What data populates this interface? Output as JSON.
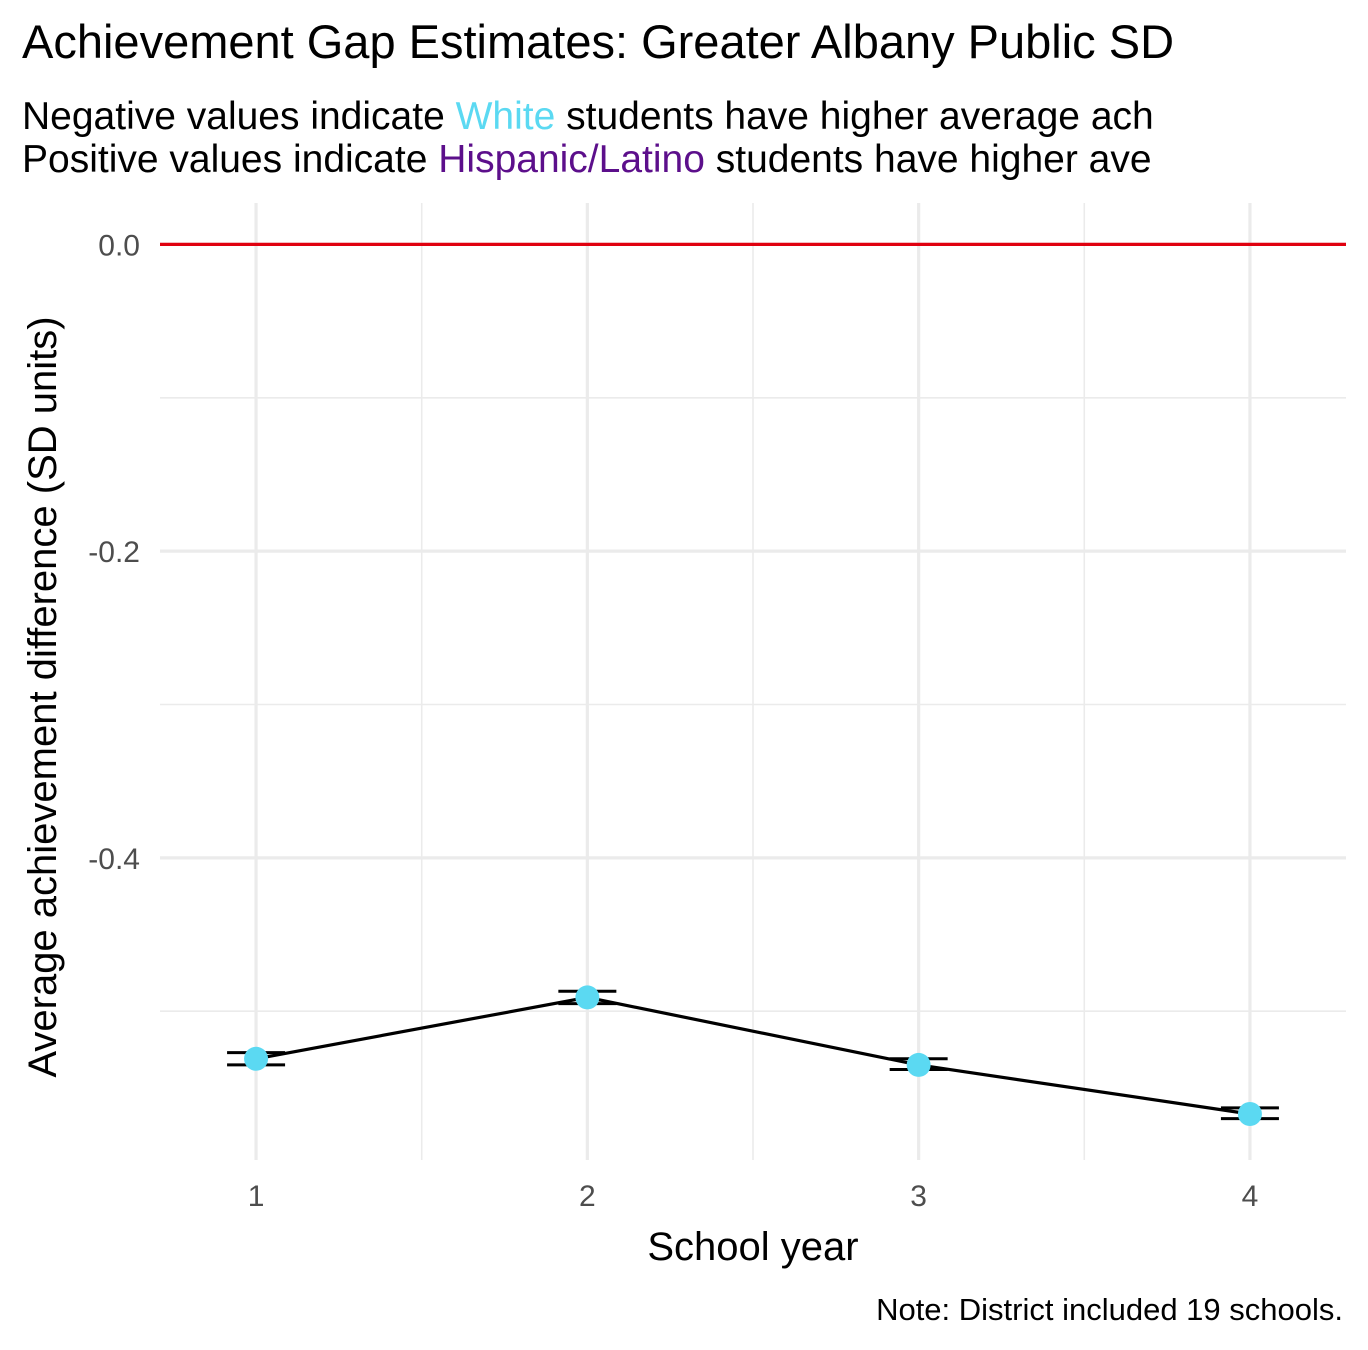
{
  "title": "Achievement Gap Estimates: Greater Albany Public SD",
  "subtitle": {
    "line1": {
      "before": "Negative values indicate ",
      "group": "White",
      "after": " students have higher average ach"
    },
    "line2": {
      "before": "Positive values indicate ",
      "group": "Hispanic/Latino",
      "after": " students have higher ave"
    }
  },
  "caption": "Note: District included 19 schools.",
  "colors": {
    "white_group": "#5BD9F2",
    "hispanic_group": "#5C0F8B",
    "reference_line": "#E0000F",
    "point": "#5BD9F2",
    "line": "#000000",
    "grid": "#EBEBEB"
  },
  "chart_data": {
    "type": "line",
    "xlabel": "School year",
    "ylabel": "Average achievement difference (SD units)",
    "x": [
      1,
      2,
      3,
      4
    ],
    "xlim": [
      0.71,
      4.29
    ],
    "ylim": [
      -0.597,
      0.027
    ],
    "x_ticks": [
      "1",
      "2",
      "3",
      "4"
    ],
    "y_ticks": [
      {
        "value": 0.0,
        "label": "0.0"
      },
      {
        "value": -0.2,
        "label": "-0.2"
      },
      {
        "value": -0.4,
        "label": "-0.4"
      }
    ],
    "y_minor_ticks": [
      -0.1,
      -0.3,
      -0.5
    ],
    "x_minor_ticks": [
      1.5,
      2.5,
      3.5
    ],
    "reference_line": 0.0,
    "grid": true,
    "series": [
      {
        "values": [
          -0.531,
          -0.491,
          -0.535,
          -0.567
        ],
        "lower": [
          -0.535,
          -0.495,
          -0.538,
          -0.57
        ],
        "upper": [
          -0.527,
          -0.487,
          -0.531,
          -0.563
        ]
      }
    ]
  }
}
